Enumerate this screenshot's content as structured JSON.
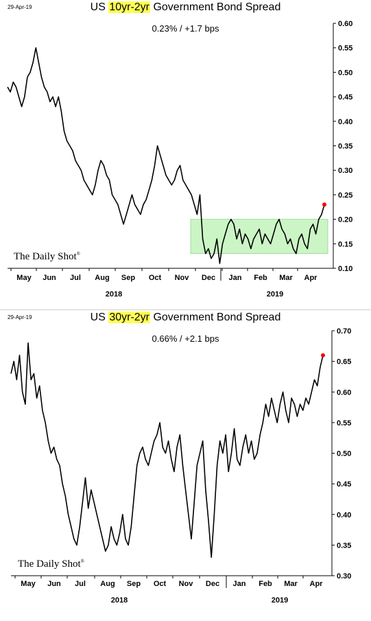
{
  "charts": [
    {
      "date_stamp": "29-Apr-19",
      "title_prefix": "US ",
      "title_highlight": "10yr-2yr",
      "title_suffix": " Government Bond Spread",
      "subtitle": "0.23%  /  +1.7 bps",
      "watermark": "The Daily Shot",
      "watermark_mark": "®"
    },
    {
      "date_stamp": "29-Apr-19",
      "title_prefix": "US ",
      "title_highlight": "30yr-2yr",
      "title_suffix": " Government Bond Spread",
      "subtitle": "0.66%  /  +2.1 bps",
      "watermark": "The Daily Shot",
      "watermark_mark": "®"
    }
  ],
  "chart_data": [
    {
      "type": "line",
      "title": "US 10yr-2yr Government Bond Spread",
      "subtitle": "0.23%  /  +1.7 bps",
      "ylim": [
        0.1,
        0.6
      ],
      "yticks": [
        "0.60",
        "0.55",
        "0.50",
        "0.45",
        "0.40",
        "0.35",
        "0.30",
        "0.25",
        "0.20",
        "0.15",
        "0.10"
      ],
      "month_labels": [
        "May",
        "Jun",
        "Jul",
        "Aug",
        "Sep",
        "Oct",
        "Nov",
        "Dec",
        "Jan",
        "Feb",
        "Mar",
        "Apr"
      ],
      "year_labels": [
        "2018",
        "2019"
      ],
      "highlight_band": {
        "y_from": 0.13,
        "y_to": 0.2,
        "from_month": "Nov",
        "color": "#ccf5c6"
      },
      "last_value": 0.23,
      "last_marker_color": "#ff0000",
      "series": [
        {
          "values": [
            0.47,
            0.46,
            0.48,
            0.47,
            0.45,
            0.43,
            0.45,
            0.49,
            0.5,
            0.52,
            0.55,
            0.52,
            0.49,
            0.47,
            0.46,
            0.44,
            0.45,
            0.43,
            0.45,
            0.42,
            0.38,
            0.36,
            0.35,
            0.34,
            0.32,
            0.31,
            0.3,
            0.28,
            0.27,
            0.26,
            0.25,
            0.27,
            0.3,
            0.32,
            0.31,
            0.29,
            0.28,
            0.25,
            0.24,
            0.23,
            0.21,
            0.19,
            0.21,
            0.23,
            0.25,
            0.23,
            0.22,
            0.21,
            0.23,
            0.24,
            0.26,
            0.28,
            0.31,
            0.35,
            0.33,
            0.31,
            0.29,
            0.28,
            0.27,
            0.28,
            0.3,
            0.31,
            0.28,
            0.27,
            0.26,
            0.25,
            0.23,
            0.21,
            0.25,
            0.16,
            0.13,
            0.14,
            0.12,
            0.13,
            0.16,
            0.11,
            0.15,
            0.17,
            0.19,
            0.2,
            0.19,
            0.16,
            0.18,
            0.15,
            0.17,
            0.16,
            0.14,
            0.16,
            0.17,
            0.18,
            0.15,
            0.17,
            0.16,
            0.15,
            0.17,
            0.19,
            0.2,
            0.18,
            0.17,
            0.15,
            0.16,
            0.14,
            0.13,
            0.16,
            0.17,
            0.15,
            0.14,
            0.18,
            0.19,
            0.17,
            0.2,
            0.21,
            0.23
          ]
        }
      ]
    },
    {
      "type": "line",
      "title": "US 30yr-2yr Government Bond Spread",
      "subtitle": "0.66%  /  +2.1 bps",
      "ylim": [
        0.3,
        0.7
      ],
      "yticks": [
        "0.70",
        "0.65",
        "0.60",
        "0.55",
        "0.50",
        "0.45",
        "0.40",
        "0.35",
        "0.30"
      ],
      "month_labels": [
        "May",
        "Jun",
        "Jul",
        "Aug",
        "Sep",
        "Oct",
        "Nov",
        "Dec",
        "Jan",
        "Feb",
        "Mar",
        "Apr"
      ],
      "year_labels": [
        "2018",
        "2019"
      ],
      "last_value": 0.66,
      "last_marker_color": "#ff0000",
      "series": [
        {
          "values": [
            0.63,
            0.65,
            0.62,
            0.66,
            0.6,
            0.58,
            0.68,
            0.62,
            0.63,
            0.59,
            0.61,
            0.57,
            0.55,
            0.52,
            0.5,
            0.51,
            0.49,
            0.48,
            0.45,
            0.43,
            0.4,
            0.38,
            0.36,
            0.35,
            0.38,
            0.42,
            0.46,
            0.41,
            0.44,
            0.42,
            0.4,
            0.38,
            0.36,
            0.34,
            0.35,
            0.38,
            0.36,
            0.35,
            0.37,
            0.4,
            0.36,
            0.35,
            0.38,
            0.43,
            0.48,
            0.5,
            0.51,
            0.49,
            0.48,
            0.5,
            0.52,
            0.53,
            0.55,
            0.51,
            0.5,
            0.52,
            0.49,
            0.47,
            0.51,
            0.53,
            0.48,
            0.44,
            0.4,
            0.36,
            0.42,
            0.48,
            0.5,
            0.52,
            0.44,
            0.39,
            0.33,
            0.4,
            0.48,
            0.52,
            0.5,
            0.53,
            0.47,
            0.5,
            0.54,
            0.49,
            0.48,
            0.51,
            0.53,
            0.5,
            0.52,
            0.49,
            0.5,
            0.53,
            0.55,
            0.58,
            0.56,
            0.59,
            0.57,
            0.55,
            0.58,
            0.6,
            0.57,
            0.55,
            0.59,
            0.58,
            0.56,
            0.58,
            0.57,
            0.59,
            0.58,
            0.6,
            0.62,
            0.61,
            0.64,
            0.66
          ]
        }
      ]
    }
  ]
}
